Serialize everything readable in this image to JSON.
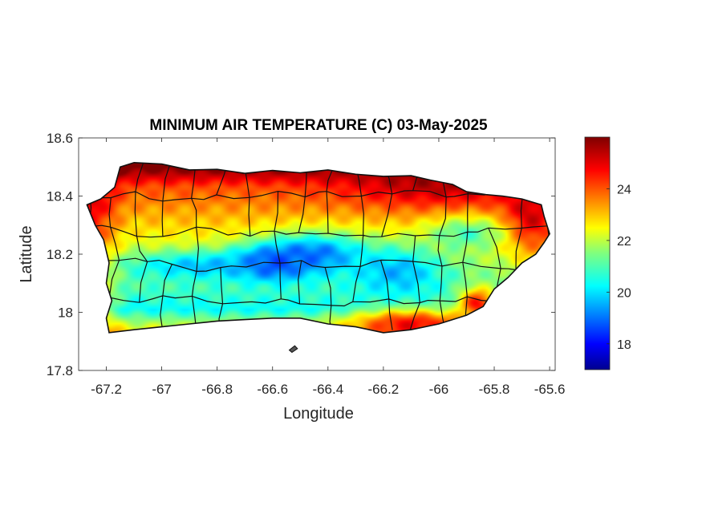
{
  "title": "MINIMUM AIR TEMPERATURE (C) 03-May-2025",
  "xlabel": "Longitude",
  "ylabel": "Latitude",
  "chart_data": {
    "type": "heatmap",
    "title": "MINIMUM AIR TEMPERATURE (C) 03-May-2025",
    "xlabel": "Longitude",
    "ylabel": "Latitude",
    "xlim": [
      -67.3,
      -65.58
    ],
    "ylim": [
      17.8,
      18.6
    ],
    "x_ticks": [
      -67.2,
      -67,
      -66.8,
      -66.6,
      -66.4,
      -66.2,
      -66,
      -65.8,
      -65.6
    ],
    "x_tick_labels": [
      "-67.2",
      "-67",
      "-66.8",
      "-66.6",
      "-66.4",
      "-66.2",
      "-66",
      "-65.8",
      "-65.6"
    ],
    "y_ticks": [
      17.8,
      18,
      18.2,
      18.4,
      18.6
    ],
    "y_tick_labels": [
      "17.8",
      "18",
      "18.2",
      "18.4",
      "18.6"
    ],
    "colorbar": {
      "range": [
        17,
        26
      ],
      "ticks": [
        18,
        20,
        22,
        24
      ],
      "tick_labels": [
        "18",
        "20",
        "22",
        "24"
      ],
      "colormap": "jet"
    },
    "grid": false,
    "coastline": [
      [
        -67.27,
        18.37
      ],
      [
        -67.22,
        18.39
      ],
      [
        -67.17,
        18.43
      ],
      [
        -67.15,
        18.5
      ],
      [
        -67.1,
        18.515
      ],
      [
        -67.0,
        18.51
      ],
      [
        -66.9,
        18.49
      ],
      [
        -66.8,
        18.492
      ],
      [
        -66.7,
        18.478
      ],
      [
        -66.6,
        18.488
      ],
      [
        -66.5,
        18.48
      ],
      [
        -66.4,
        18.49
      ],
      [
        -66.3,
        18.475
      ],
      [
        -66.2,
        18.468
      ],
      [
        -66.1,
        18.47
      ],
      [
        -66.03,
        18.455
      ],
      [
        -65.95,
        18.44
      ],
      [
        -65.9,
        18.415
      ],
      [
        -65.83,
        18.405
      ],
      [
        -65.77,
        18.4
      ],
      [
        -65.7,
        18.39
      ],
      [
        -65.63,
        18.37
      ],
      [
        -65.62,
        18.33
      ],
      [
        -65.6,
        18.27
      ],
      [
        -65.62,
        18.24
      ],
      [
        -65.65,
        18.2
      ],
      [
        -65.7,
        18.17
      ],
      [
        -65.75,
        18.12
      ],
      [
        -65.8,
        18.08
      ],
      [
        -65.84,
        18.02
      ],
      [
        -65.9,
        17.99
      ],
      [
        -66.0,
        17.96
      ],
      [
        -66.1,
        17.94
      ],
      [
        -66.2,
        17.93
      ],
      [
        -66.3,
        17.95
      ],
      [
        -66.4,
        17.96
      ],
      [
        -66.5,
        17.98
      ],
      [
        -66.6,
        17.98
      ],
      [
        -66.7,
        17.975
      ],
      [
        -66.8,
        17.97
      ],
      [
        -66.9,
        17.96
      ],
      [
        -67.0,
        17.95
      ],
      [
        -67.1,
        17.94
      ],
      [
        -67.19,
        17.93
      ],
      [
        -67.2,
        17.98
      ],
      [
        -67.18,
        18.04
      ],
      [
        -67.2,
        18.1
      ],
      [
        -67.19,
        18.17
      ],
      [
        -67.21,
        18.25
      ],
      [
        -67.24,
        18.3
      ],
      [
        -67.27,
        18.37
      ]
    ],
    "islets": [
      [
        [
          -66.54,
          17.87
        ],
        [
          -66.52,
          17.885
        ],
        [
          -66.51,
          17.875
        ],
        [
          -66.53,
          17.862
        ],
        [
          -66.54,
          17.87
        ]
      ]
    ],
    "temperature_features": [
      {
        "lon": -66.0,
        "lat": 18.45,
        "value": 25.8,
        "sx": 0.25,
        "sy": 0.06
      },
      {
        "lon": -65.67,
        "lat": 18.33,
        "value": 25.6,
        "sx": 0.07,
        "sy": 0.09
      },
      {
        "lon": -66.1,
        "lat": 17.96,
        "value": 25.3,
        "sx": 0.15,
        "sy": 0.04
      },
      {
        "lon": -65.86,
        "lat": 18.03,
        "value": 25.3,
        "sx": 0.05,
        "sy": 0.04
      },
      {
        "lon": -66.6,
        "lat": 18.17,
        "value": 17.6,
        "sx": 0.1,
        "sy": 0.04
      },
      {
        "lon": -66.45,
        "lat": 18.2,
        "value": 18.8,
        "sx": 0.14,
        "sy": 0.05
      },
      {
        "lon": -66.85,
        "lat": 18.16,
        "value": 19.6,
        "sx": 0.2,
        "sy": 0.035
      },
      {
        "lon": -66.15,
        "lat": 18.14,
        "value": 19.5,
        "sx": 0.12,
        "sy": 0.06
      },
      {
        "lon": -65.9,
        "lat": 18.27,
        "value": 20.8,
        "sx": 0.1,
        "sy": 0.04
      }
    ],
    "municipal_boundaries": true
  }
}
